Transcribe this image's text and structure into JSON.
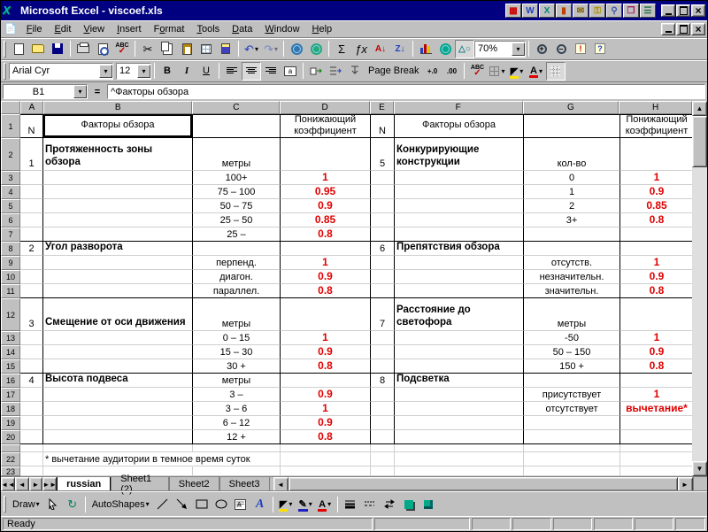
{
  "window_title": "Microsoft Excel - viscoef.xls",
  "menu_items": [
    {
      "label": "File",
      "u": 0
    },
    {
      "label": "Edit",
      "u": 0
    },
    {
      "label": "View",
      "u": 0
    },
    {
      "label": "Insert",
      "u": 0
    },
    {
      "label": "Format",
      "u": 1
    },
    {
      "label": "Tools",
      "u": 0
    },
    {
      "label": "Data",
      "u": 0
    },
    {
      "label": "Window",
      "u": 0
    },
    {
      "label": "Help",
      "u": 0
    }
  ],
  "title_icons": {
    "word": "W",
    "excel": "X"
  },
  "standard_toolbar": {
    "zoom_value": "70%",
    "autosum": "Σ",
    "function": "ƒx",
    "sort_asc": "A↓",
    "sort_desc": "Z↓",
    "undo": "↶",
    "redo": "↷"
  },
  "formatting_toolbar": {
    "font_name": "Arial Cyr",
    "font_size": "12",
    "bold": "B",
    "italic": "I",
    "underline": "U",
    "page_break": "Page Break",
    "inc_decimal": "+.0",
    "dec_decimal": ".00"
  },
  "formula_bar": {
    "name_box": "B1",
    "content": "^Факторы обзора"
  },
  "colors": {
    "title_bar": "#000080",
    "coefficient_red": "#e00000",
    "chrome": "#c0c0c0"
  },
  "grid": {
    "columns": [
      "A",
      "B",
      "C",
      "D",
      "E",
      "F",
      "G",
      "H"
    ],
    "rows": [
      {
        "n": 1,
        "label": "1",
        "cells": {
          "A": {
            "t": "N"
          },
          "B": {
            "t": "Факторы обзора",
            "cls": "cls-hdr sel"
          },
          "D": {
            "t": "Понижающий коэффициент",
            "cls": "cls-hdr"
          },
          "E": {
            "t": "N"
          },
          "F": {
            "t": "Факторы обзора",
            "cls": "cls-hdr"
          },
          "H": {
            "t": "Понижающий коэффициент",
            "cls": "cls-hdr"
          }
        }
      },
      {
        "n": 2,
        "label": "2",
        "cells": {
          "A": {
            "t": "1"
          },
          "B": {
            "t": "Протяженность зоны обзора",
            "cls": "cls-f"
          },
          "C": {
            "t": "метры"
          },
          "E": {
            "t": "5"
          },
          "F": {
            "t": "Конкурирующие конструкции",
            "cls": "cls-f"
          },
          "G": {
            "t": "кол-во"
          }
        }
      },
      {
        "n": 3,
        "label": "3",
        "cells": {
          "C": {
            "t": "100+"
          },
          "D": {
            "t": "1",
            "cls": "cls-k"
          },
          "G": {
            "t": "0"
          },
          "H": {
            "t": "1",
            "cls": "cls-k"
          }
        }
      },
      {
        "n": 4,
        "label": "4",
        "cells": {
          "C": {
            "t": "75 – 100"
          },
          "D": {
            "t": "0.95",
            "cls": "cls-k"
          },
          "G": {
            "t": "1"
          },
          "H": {
            "t": "0.9",
            "cls": "cls-k"
          }
        }
      },
      {
        "n": 5,
        "label": "5",
        "cells": {
          "C": {
            "t": "50 – 75"
          },
          "D": {
            "t": "0.9",
            "cls": "cls-k"
          },
          "G": {
            "t": "2"
          },
          "H": {
            "t": "0.85",
            "cls": "cls-k"
          }
        }
      },
      {
        "n": 6,
        "label": "6",
        "cells": {
          "C": {
            "t": "25 – 50"
          },
          "D": {
            "t": "0.85",
            "cls": "cls-k"
          },
          "G": {
            "t": "3+"
          },
          "H": {
            "t": "0.8",
            "cls": "cls-k"
          }
        }
      },
      {
        "n": 7,
        "label": "7",
        "cells": {
          "C": {
            "t": "25 –"
          },
          "D": {
            "t": "0.8",
            "cls": "cls-k"
          }
        }
      },
      {
        "n": 8,
        "label": "8",
        "cells": {
          "A": {
            "t": "2"
          },
          "B": {
            "t": "Угол разворота",
            "cls": "cls-f"
          },
          "E": {
            "t": "6"
          },
          "F": {
            "t": "Препятствия обзора",
            "cls": "cls-f"
          }
        }
      },
      {
        "n": 9,
        "label": "9",
        "cells": {
          "C": {
            "t": "перпенд."
          },
          "D": {
            "t": "1",
            "cls": "cls-k"
          },
          "G": {
            "t": "отсутств."
          },
          "H": {
            "t": "1",
            "cls": "cls-k"
          }
        }
      },
      {
        "n": 10,
        "label": "10",
        "cells": {
          "C": {
            "t": "диагон."
          },
          "D": {
            "t": "0.9",
            "cls": "cls-k"
          },
          "G": {
            "t": "незначительн."
          },
          "H": {
            "t": "0.9",
            "cls": "cls-k"
          }
        }
      },
      {
        "n": 11,
        "label": "11",
        "cells": {
          "C": {
            "t": "параллел."
          },
          "D": {
            "t": "0.8",
            "cls": "cls-k"
          },
          "G": {
            "t": "значительн."
          },
          "H": {
            "t": "0.8",
            "cls": "cls-k"
          }
        }
      },
      {
        "n": 12,
        "label": "12",
        "cells": {
          "A": {
            "t": "3"
          },
          "B": {
            "t": "Смещение от оси движения",
            "cls": "cls-f"
          },
          "C": {
            "t": "метры"
          },
          "E": {
            "t": "7"
          },
          "F": {
            "t": "Расстояние до светофора",
            "cls": "cls-f"
          },
          "G": {
            "t": "метры"
          }
        }
      },
      {
        "n": 13,
        "label": "13",
        "cells": {
          "C": {
            "t": "0 – 15"
          },
          "D": {
            "t": "1",
            "cls": "cls-k"
          },
          "G": {
            "t": "-50"
          },
          "H": {
            "t": "1",
            "cls": "cls-k"
          }
        }
      },
      {
        "n": 14,
        "label": "14",
        "cells": {
          "C": {
            "t": "15 – 30"
          },
          "D": {
            "t": "0.9",
            "cls": "cls-k"
          },
          "G": {
            "t": "50 – 150"
          },
          "H": {
            "t": "0.9",
            "cls": "cls-k"
          }
        }
      },
      {
        "n": 15,
        "label": "15",
        "cells": {
          "C": {
            "t": "30 +"
          },
          "D": {
            "t": "0.8",
            "cls": "cls-k"
          },
          "G": {
            "t": "150 +"
          },
          "H": {
            "t": "0.8",
            "cls": "cls-k"
          }
        }
      },
      {
        "n": 16,
        "label": "16",
        "cells": {
          "A": {
            "t": "4"
          },
          "B": {
            "t": "Высота подвеса",
            "cls": "cls-f"
          },
          "C": {
            "t": "метры"
          },
          "E": {
            "t": "8"
          },
          "F": {
            "t": "Подсветка",
            "cls": "cls-f"
          }
        }
      },
      {
        "n": 17,
        "label": "17",
        "cells": {
          "C": {
            "t": "3 –"
          },
          "D": {
            "t": "0.9",
            "cls": "cls-k"
          },
          "G": {
            "t": "присутствует"
          },
          "H": {
            "t": "1",
            "cls": "cls-k"
          }
        }
      },
      {
        "n": 18,
        "label": "18",
        "cells": {
          "C": {
            "t": "3 – 6"
          },
          "D": {
            "t": "1",
            "cls": "cls-k"
          },
          "G": {
            "t": "отсутствует"
          },
          "H": {
            "t": "вычетание*",
            "cls": "cls-k"
          }
        }
      },
      {
        "n": 19,
        "label": "19",
        "cells": {
          "C": {
            "t": "6 – 12"
          },
          "D": {
            "t": "0.9",
            "cls": "cls-k"
          }
        }
      },
      {
        "n": 20,
        "label": "20",
        "cells": {
          "C": {
            "t": "12 +"
          },
          "D": {
            "t": "0.8",
            "cls": "cls-k"
          }
        }
      },
      {
        "n": 21,
        "label": "",
        "cells": {}
      },
      {
        "n": 22,
        "label": "22",
        "cells": {
          "B": {
            "t": "* вычетание аудитории в темное время суток",
            "cls": "cls-note"
          }
        }
      },
      {
        "n": 23,
        "label": "23",
        "cells": {}
      }
    ]
  },
  "sheet_tabs": {
    "active": "russian",
    "tabs": [
      "russian",
      "Sheet1 (2)",
      "Sheet2",
      "Sheet3"
    ]
  },
  "drawing_toolbar": {
    "draw": "Draw",
    "autoshapes": "AutoShapes",
    "wordart": "A"
  },
  "status_bar": {
    "message": "Ready"
  }
}
